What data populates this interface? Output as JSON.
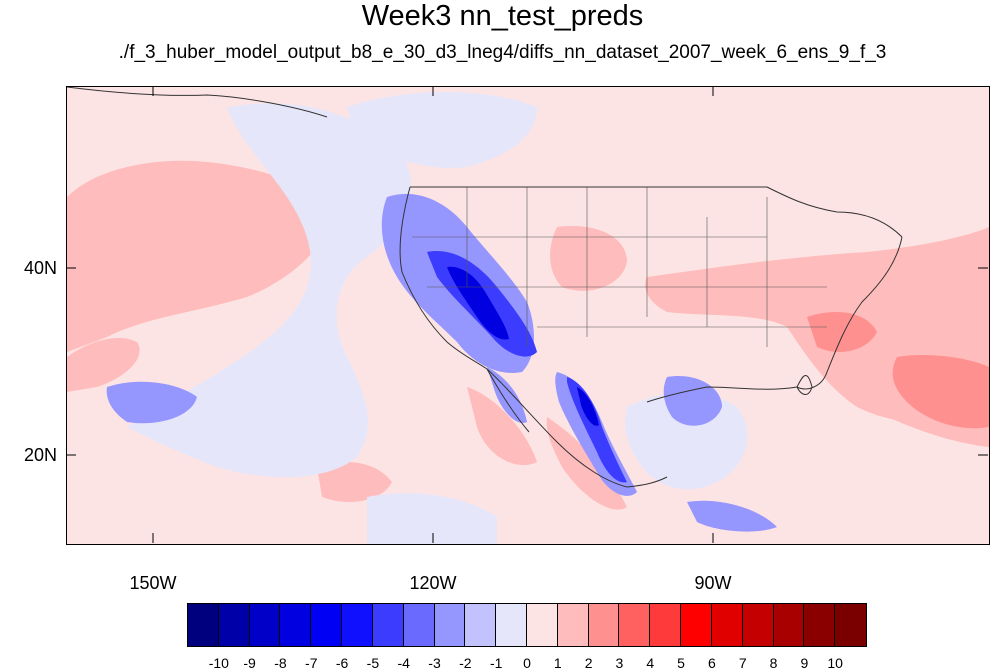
{
  "title": "Week3 nn_test_preds",
  "subtitle": "./f_3_huber_model_output_b8_e_30_d3_lneg4/diffs_nn_dataset_2007_week_6_ens_9_f_3",
  "map": {
    "lat_labels": [
      "40N",
      "20N"
    ],
    "lon_labels": [
      "150W",
      "120W",
      "90W"
    ],
    "background_color": "#fde4e4"
  },
  "colorbar": {
    "labels": [
      "-10",
      "-9",
      "-8",
      "-7",
      "-6",
      "-5",
      "-4",
      "-3",
      "-2",
      "-1",
      "0",
      "1",
      "2",
      "3",
      "4",
      "5",
      "6",
      "7",
      "8",
      "9",
      "10"
    ],
    "colors": [
      "#00007f",
      "#0000a8",
      "#0000c8",
      "#0000e0",
      "#0000f5",
      "#1010ff",
      "#3c3cff",
      "#6a6aff",
      "#9696ff",
      "#c2c2ff",
      "#e6e6fa",
      "#fde4e4",
      "#ffbcbc",
      "#ff9090",
      "#ff6060",
      "#ff3a3a",
      "#ff0000",
      "#e00000",
      "#c40000",
      "#a80000",
      "#8a0000",
      "#7a0000"
    ]
  }
}
